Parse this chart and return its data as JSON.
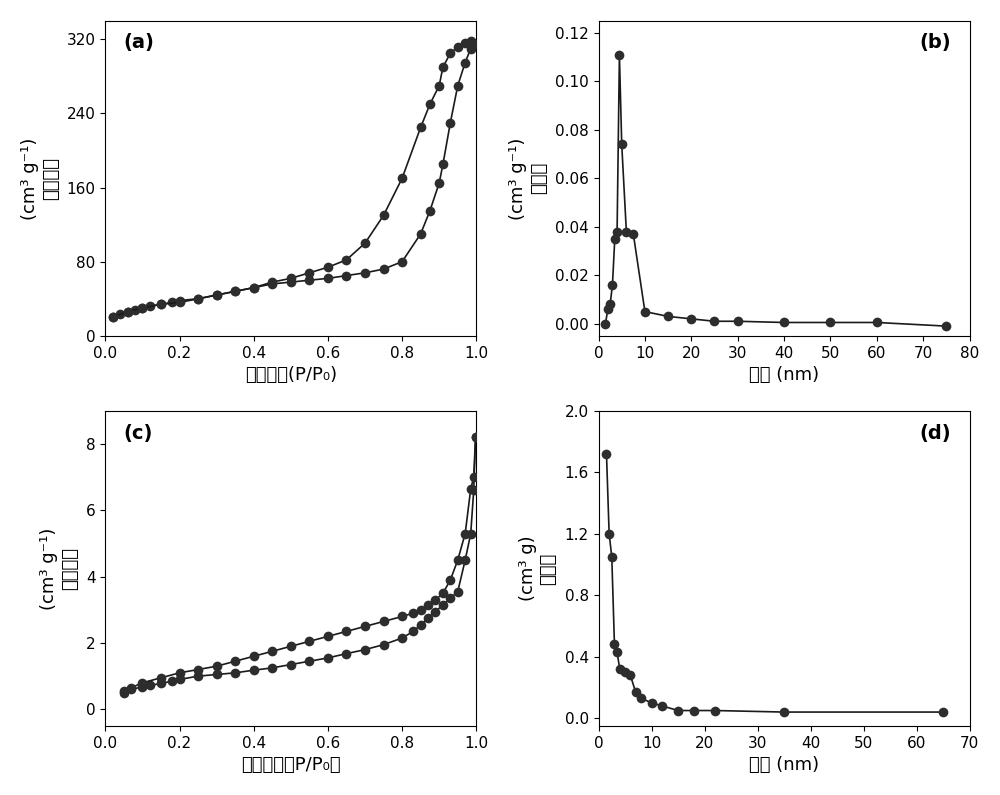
{
  "panel_a": {
    "label": "(a)",
    "xlabel": "相对压力(P/P₀)",
    "ylabel_chinese": "吸附体积",
    "ylabel_unit": "(cm³ g⁻¹)",
    "xlim": [
      0.0,
      1.0
    ],
    "ylim": [
      0,
      340
    ],
    "yticks": [
      0,
      80,
      160,
      240,
      320
    ],
    "xticks": [
      0.0,
      0.2,
      0.4,
      0.6,
      0.8,
      1.0
    ],
    "adsorption_x": [
      0.02,
      0.04,
      0.06,
      0.08,
      0.1,
      0.12,
      0.15,
      0.18,
      0.2,
      0.25,
      0.3,
      0.35,
      0.4,
      0.45,
      0.5,
      0.55,
      0.6,
      0.65,
      0.7,
      0.75,
      0.8,
      0.85,
      0.875,
      0.9,
      0.91,
      0.93,
      0.95,
      0.97,
      0.985,
      0.995
    ],
    "adsorption_y": [
      20,
      23,
      26,
      28,
      30,
      32,
      34,
      36,
      38,
      40,
      44,
      48,
      52,
      56,
      58,
      60,
      62,
      65,
      68,
      72,
      80,
      110,
      135,
      165,
      185,
      230,
      270,
      295,
      310,
      315
    ],
    "desorption_x": [
      0.995,
      0.985,
      0.97,
      0.95,
      0.93,
      0.91,
      0.9,
      0.875,
      0.85,
      0.8,
      0.75,
      0.7,
      0.65,
      0.6,
      0.55,
      0.5,
      0.45,
      0.4,
      0.35,
      0.3,
      0.25,
      0.2,
      0.15,
      0.1,
      0.06,
      0.02
    ],
    "desorption_y": [
      315,
      318,
      316,
      312,
      305,
      290,
      270,
      250,
      225,
      170,
      130,
      100,
      82,
      74,
      68,
      62,
      58,
      52,
      48,
      44,
      40,
      36,
      34,
      30,
      26,
      20
    ]
  },
  "panel_b": {
    "label": "(b)",
    "xlabel": "孔径 (nm)",
    "ylabel_chinese": "孔体积",
    "ylabel_unit": "(cm³ g⁻¹)",
    "xlim": [
      0,
      80
    ],
    "ylim": [
      -0.005,
      0.125
    ],
    "yticks": [
      0.0,
      0.02,
      0.04,
      0.06,
      0.08,
      0.1,
      0.12
    ],
    "xticks": [
      0,
      10,
      20,
      30,
      40,
      50,
      60,
      70,
      80
    ],
    "x": [
      1.5,
      2.0,
      2.5,
      3.0,
      3.5,
      4.0,
      4.5,
      5.0,
      6.0,
      7.5,
      10.0,
      15.0,
      20.0,
      25.0,
      30.0,
      40.0,
      50.0,
      60.0,
      75.0
    ],
    "y": [
      0.0,
      0.006,
      0.008,
      0.016,
      0.035,
      0.038,
      0.111,
      0.074,
      0.038,
      0.037,
      0.005,
      0.003,
      0.002,
      0.001,
      0.001,
      0.0005,
      0.0005,
      0.0005,
      -0.001
    ]
  },
  "panel_c": {
    "label": "(c)",
    "xlabel": "相对压力（P/P₀）",
    "ylabel_chinese": "吸附体积",
    "ylabel_unit": "(cm³ g⁻¹)",
    "xlim": [
      0.0,
      1.0
    ],
    "ylim": [
      -0.5,
      9.0
    ],
    "yticks": [
      0,
      2,
      4,
      6,
      8
    ],
    "xticks": [
      0.0,
      0.2,
      0.4,
      0.6,
      0.8,
      1.0
    ],
    "adsorption_x": [
      0.05,
      0.07,
      0.1,
      0.12,
      0.15,
      0.18,
      0.2,
      0.25,
      0.3,
      0.35,
      0.4,
      0.45,
      0.5,
      0.55,
      0.6,
      0.65,
      0.7,
      0.75,
      0.8,
      0.83,
      0.85,
      0.87,
      0.89,
      0.91,
      0.93,
      0.95,
      0.97,
      0.985,
      0.993,
      0.998
    ],
    "adsorption_y": [
      0.55,
      0.6,
      0.68,
      0.72,
      0.78,
      0.85,
      0.9,
      1.0,
      1.05,
      1.1,
      1.18,
      1.25,
      1.35,
      1.45,
      1.55,
      1.68,
      1.8,
      1.95,
      2.15,
      2.35,
      2.55,
      2.75,
      2.95,
      3.15,
      3.35,
      3.55,
      4.5,
      5.3,
      6.6,
      8.2
    ],
    "desorption_x": [
      0.998,
      0.993,
      0.985,
      0.97,
      0.95,
      0.93,
      0.91,
      0.89,
      0.87,
      0.85,
      0.83,
      0.8,
      0.75,
      0.7,
      0.65,
      0.6,
      0.55,
      0.5,
      0.45,
      0.4,
      0.35,
      0.3,
      0.25,
      0.2,
      0.15,
      0.1,
      0.07,
      0.05
    ],
    "desorption_y": [
      8.2,
      7.0,
      6.65,
      5.3,
      4.5,
      3.9,
      3.5,
      3.3,
      3.15,
      3.0,
      2.9,
      2.8,
      2.65,
      2.5,
      2.35,
      2.2,
      2.05,
      1.9,
      1.75,
      1.6,
      1.45,
      1.3,
      1.2,
      1.1,
      0.95,
      0.8,
      0.65,
      0.5
    ]
  },
  "panel_d": {
    "label": "(d)",
    "xlabel": "孔径 (nm)",
    "ylabel_chinese": "孔体积",
    "ylabel_unit": "(cm³ g)",
    "xlim": [
      0,
      70
    ],
    "ylim": [
      -0.05,
      2.0
    ],
    "yticks": [
      0.0,
      0.4,
      0.8,
      1.2,
      1.6,
      2.0
    ],
    "xticks": [
      0,
      10,
      20,
      30,
      40,
      50,
      60,
      70
    ],
    "x": [
      1.5,
      2.0,
      2.5,
      3.0,
      3.5,
      4.0,
      5.0,
      6.0,
      7.0,
      8.0,
      10.0,
      12.0,
      15.0,
      18.0,
      22.0,
      35.0,
      65.0
    ],
    "y": [
      1.72,
      1.2,
      1.05,
      0.48,
      0.43,
      0.32,
      0.3,
      0.28,
      0.17,
      0.13,
      0.1,
      0.08,
      0.05,
      0.05,
      0.05,
      0.04,
      0.04
    ]
  },
  "marker_color": "#2d2d2d",
  "line_color": "#1a1a1a",
  "marker_size": 7,
  "linewidth": 1.2,
  "background_color": "#ffffff",
  "tick_fontsize": 11,
  "label_fontsize": 13,
  "panel_label_fontsize": 14
}
